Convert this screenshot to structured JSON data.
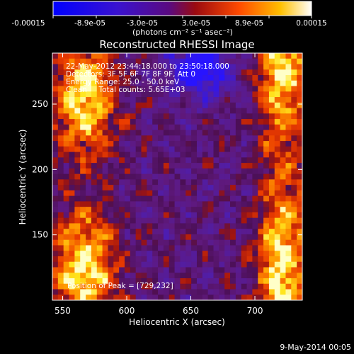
{
  "colorbar": {
    "tick_labels": [
      "-0.00015",
      "-8.9e-05",
      "-3.0e-05",
      "3.0e-05",
      "8.9e-05",
      "0.00015"
    ],
    "range": [
      -0.00015,
      0.00015
    ],
    "unit_label": "(photons cm⁻² s⁻¹ asec⁻²)"
  },
  "chart_data": {
    "type": "heatmap",
    "title": "Reconstructed RHESSI Image",
    "xlabel": "Heliocentric X (arcsec)",
    "ylabel": "Heliocentric Y (arcsec)",
    "xlim": [
      542,
      737
    ],
    "ylim": [
      100,
      289
    ],
    "x_ticks": [
      550,
      600,
      650,
      700
    ],
    "y_ticks": [
      150,
      200,
      250
    ],
    "x_tick_labels": [
      "550",
      "600",
      "650",
      "700"
    ],
    "y_tick_labels": [
      "150",
      "200",
      "250"
    ],
    "grid": false,
    "colormap": [
      "#2a1aff",
      "#5a1aa0",
      "#6a1a7a",
      "#c02a10",
      "#ff6a00",
      "#ffe000",
      "#ffffff"
    ],
    "annotations": [
      "22-May-2012 23:44:18.000 to 23:50:18.000",
      "Detectors: 3F 5F 6F 7F 8F 9F, Att 0",
      "Energy Range: 25.0 - 50.0 keV",
      "Clean     Total counts: 5.65E+03"
    ],
    "peak_label": "Position of Peak = [729,232]",
    "peak_position": [
      729,
      232
    ],
    "total_counts": "5.65E+03",
    "energy_range_keV": [
      25.0,
      50.0
    ]
  },
  "footer": {
    "date": "9-May-2014 00:05"
  }
}
